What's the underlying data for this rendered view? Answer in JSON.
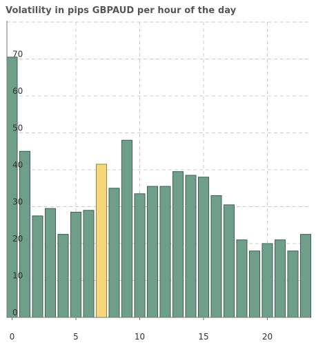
{
  "title": "Volatility in pips GBPAUD per hour of the day",
  "colors": {
    "bar": "#6f9e8b",
    "bar_stroke": "#3f5f52",
    "highlight": "#f5d77a",
    "highlight_stroke": "#9a8238",
    "grid": "#cccccc",
    "axis": "#777777"
  },
  "chart_data": {
    "type": "bar",
    "title": "Volatility in pips GBPAUD per hour of the day",
    "xlabel": "",
    "ylabel": "",
    "categories": [
      0,
      1,
      2,
      3,
      4,
      5,
      6,
      7,
      8,
      9,
      10,
      11,
      12,
      13,
      14,
      15,
      16,
      17,
      18,
      19,
      20,
      21,
      22,
      23
    ],
    "values": [
      70.5,
      45,
      27.5,
      29.5,
      22.5,
      28.5,
      29,
      41.5,
      35,
      48,
      33.5,
      35.5,
      35.5,
      39.5,
      38.5,
      38,
      33,
      30.5,
      21,
      18,
      20,
      21,
      18,
      22.5
    ],
    "highlight_index": 7,
    "ylim": [
      0,
      80
    ],
    "y_ticks": [
      "0",
      "10",
      "20",
      "30",
      "40",
      "50",
      "60",
      "70"
    ],
    "x_ticks": [
      "0",
      "5",
      "10",
      "15",
      "20"
    ],
    "grid": true
  }
}
